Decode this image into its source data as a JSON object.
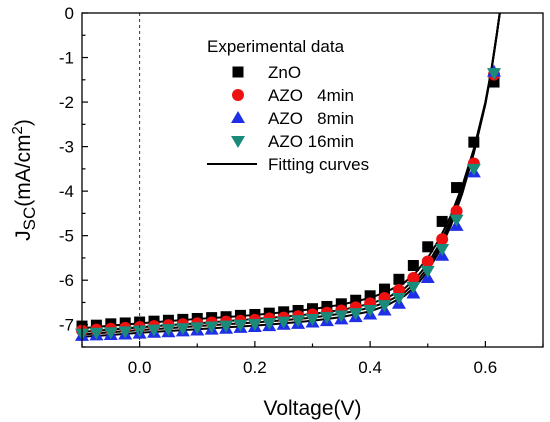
{
  "chart_data": {
    "type": "scatter",
    "title": "",
    "xlabel": "Voltage(V)",
    "ylabel": {
      "main": "J",
      "sub": "SC",
      "unit_pre": "(mA/cm",
      "unit_sup": "2",
      "unit_post": ")"
    },
    "xlim": [
      -0.1,
      0.7
    ],
    "ylim": [
      -7.5,
      0
    ],
    "x_ticks": [
      0.0,
      0.2,
      0.4,
      0.6
    ],
    "x_tick_labels": [
      "0.0",
      "0.2",
      "0.4",
      "0.6"
    ],
    "y_ticks": [
      0,
      -1,
      -2,
      -3,
      -4,
      -5,
      -6,
      -7
    ],
    "y_tick_labels": [
      "0",
      "-1",
      "-2",
      "-3",
      "-4",
      "-5",
      "-6",
      "-7"
    ],
    "grid": false,
    "reference_line": {
      "x": 0,
      "style": "dashed"
    },
    "legend": {
      "placement": "top-center",
      "title": "Experimental data",
      "fit_label": "Fitting curves"
    },
    "series": [
      {
        "name": "ZnO",
        "marker": "square",
        "color": "#000000",
        "x": [
          -0.1,
          -0.075,
          -0.05,
          -0.025,
          0.0,
          0.025,
          0.05,
          0.075,
          0.1,
          0.125,
          0.15,
          0.175,
          0.2,
          0.225,
          0.25,
          0.275,
          0.3,
          0.325,
          0.35,
          0.375,
          0.4,
          0.425,
          0.45,
          0.475,
          0.5,
          0.525,
          0.55,
          0.58,
          0.615
        ],
        "y": [
          -7.03,
          -7.01,
          -6.98,
          -6.96,
          -6.94,
          -6.92,
          -6.9,
          -6.88,
          -6.86,
          -6.84,
          -6.82,
          -6.79,
          -6.77,
          -6.74,
          -6.71,
          -6.68,
          -6.64,
          -6.59,
          -6.53,
          -6.45,
          -6.35,
          -6.2,
          -5.98,
          -5.67,
          -5.25,
          -4.68,
          -3.92,
          -2.9,
          -1.55
        ],
        "fit": {
          "x": [
            -0.1,
            -0.05,
            0.0,
            0.05,
            0.1,
            0.15,
            0.2,
            0.25,
            0.3,
            0.35,
            0.4,
            0.43,
            0.46,
            0.48,
            0.5,
            0.52,
            0.54,
            0.56,
            0.58,
            0.6,
            0.61,
            0.62,
            0.625
          ],
          "y": [
            -7.08,
            -7.02,
            -6.97,
            -6.92,
            -6.87,
            -6.83,
            -6.78,
            -6.72,
            -6.65,
            -6.55,
            -6.4,
            -6.25,
            -6.05,
            -5.82,
            -5.5,
            -5.08,
            -4.55,
            -3.88,
            -3.05,
            -2.0,
            -1.3,
            -0.45,
            0.0
          ]
        }
      },
      {
        "name": "AZO   4min",
        "marker": "circle",
        "color": "#ee1111",
        "x": [
          -0.1,
          -0.075,
          -0.05,
          -0.025,
          0.0,
          0.025,
          0.05,
          0.075,
          0.1,
          0.125,
          0.15,
          0.175,
          0.2,
          0.225,
          0.25,
          0.275,
          0.3,
          0.325,
          0.35,
          0.375,
          0.4,
          0.425,
          0.45,
          0.475,
          0.5,
          0.525,
          0.55,
          0.58,
          0.615
        ],
        "y": [
          -7.13,
          -7.11,
          -7.09,
          -7.07,
          -7.05,
          -7.03,
          -7.01,
          -6.99,
          -6.97,
          -6.95,
          -6.93,
          -6.91,
          -6.89,
          -6.86,
          -6.84,
          -6.81,
          -6.77,
          -6.73,
          -6.68,
          -6.61,
          -6.52,
          -6.4,
          -6.22,
          -5.95,
          -5.58,
          -5.08,
          -4.45,
          -3.38,
          -1.38
        ],
        "fit": {
          "x": [
            -0.1,
            -0.05,
            0.0,
            0.05,
            0.1,
            0.15,
            0.2,
            0.25,
            0.3,
            0.35,
            0.4,
            0.43,
            0.46,
            0.48,
            0.5,
            0.52,
            0.54,
            0.56,
            0.58,
            0.6,
            0.61,
            0.62,
            0.625
          ],
          "y": [
            -7.16,
            -7.11,
            -7.06,
            -7.01,
            -6.97,
            -6.92,
            -6.87,
            -6.82,
            -6.76,
            -6.67,
            -6.53,
            -6.39,
            -6.18,
            -5.95,
            -5.63,
            -5.2,
            -4.65,
            -3.96,
            -3.1,
            -2.02,
            -1.32,
            -0.46,
            0.0
          ]
        }
      },
      {
        "name": "AZO   8min",
        "marker": "triangle-up",
        "color": "#1f2fe8",
        "x": [
          -0.1,
          -0.075,
          -0.05,
          -0.025,
          0.0,
          0.025,
          0.05,
          0.075,
          0.1,
          0.125,
          0.15,
          0.175,
          0.2,
          0.225,
          0.25,
          0.275,
          0.3,
          0.325,
          0.35,
          0.375,
          0.4,
          0.425,
          0.45,
          0.475,
          0.5,
          0.525,
          0.55,
          0.58,
          0.615
        ],
        "y": [
          -7.25,
          -7.24,
          -7.23,
          -7.22,
          -7.2,
          -7.18,
          -7.17,
          -7.15,
          -7.13,
          -7.11,
          -7.09,
          -7.07,
          -7.05,
          -7.03,
          -7.0,
          -6.98,
          -6.95,
          -6.92,
          -6.88,
          -6.83,
          -6.77,
          -6.68,
          -6.53,
          -6.3,
          -5.95,
          -5.45,
          -4.78,
          -3.58,
          -1.32
        ],
        "fit": {
          "x": [
            -0.1,
            -0.05,
            0.0,
            0.05,
            0.1,
            0.15,
            0.2,
            0.25,
            0.3,
            0.35,
            0.4,
            0.43,
            0.46,
            0.48,
            0.5,
            0.52,
            0.54,
            0.56,
            0.58,
            0.6,
            0.61,
            0.62,
            0.625
          ],
          "y": [
            -7.27,
            -7.23,
            -7.18,
            -7.14,
            -7.1,
            -7.06,
            -7.02,
            -6.97,
            -6.91,
            -6.83,
            -6.7,
            -6.56,
            -6.35,
            -6.12,
            -5.8,
            -5.35,
            -4.78,
            -4.05,
            -3.15,
            -2.05,
            -1.34,
            -0.47,
            0.0
          ]
        }
      },
      {
        "name": "AZO 16min",
        "marker": "triangle-down",
        "color": "#1a8a7a",
        "x": [
          -0.1,
          -0.075,
          -0.05,
          -0.025,
          0.0,
          0.025,
          0.05,
          0.075,
          0.1,
          0.125,
          0.15,
          0.175,
          0.2,
          0.225,
          0.25,
          0.275,
          0.3,
          0.325,
          0.35,
          0.375,
          0.4,
          0.425,
          0.45,
          0.475,
          0.5,
          0.525,
          0.55,
          0.58,
          0.615
        ],
        "y": [
          -7.2,
          -7.18,
          -7.17,
          -7.15,
          -7.13,
          -7.11,
          -7.1,
          -7.08,
          -7.06,
          -7.04,
          -7.02,
          -7.0,
          -6.98,
          -6.96,
          -6.93,
          -6.9,
          -6.87,
          -6.83,
          -6.79,
          -6.74,
          -6.67,
          -6.56,
          -6.4,
          -6.15,
          -5.79,
          -5.3,
          -4.64,
          -3.5,
          -1.35
        ],
        "fit": {
          "x": [
            -0.1,
            -0.05,
            0.0,
            0.05,
            0.1,
            0.15,
            0.2,
            0.25,
            0.3,
            0.35,
            0.4,
            0.43,
            0.46,
            0.48,
            0.5,
            0.52,
            0.54,
            0.56,
            0.58,
            0.6,
            0.61,
            0.62,
            0.625
          ],
          "y": [
            -7.22,
            -7.17,
            -7.12,
            -7.08,
            -7.03,
            -6.99,
            -6.95,
            -6.9,
            -6.84,
            -6.75,
            -6.62,
            -6.48,
            -6.27,
            -6.04,
            -5.72,
            -5.28,
            -4.72,
            -4.0,
            -3.12,
            -2.03,
            -1.33,
            -0.46,
            0.0
          ]
        }
      }
    ]
  }
}
